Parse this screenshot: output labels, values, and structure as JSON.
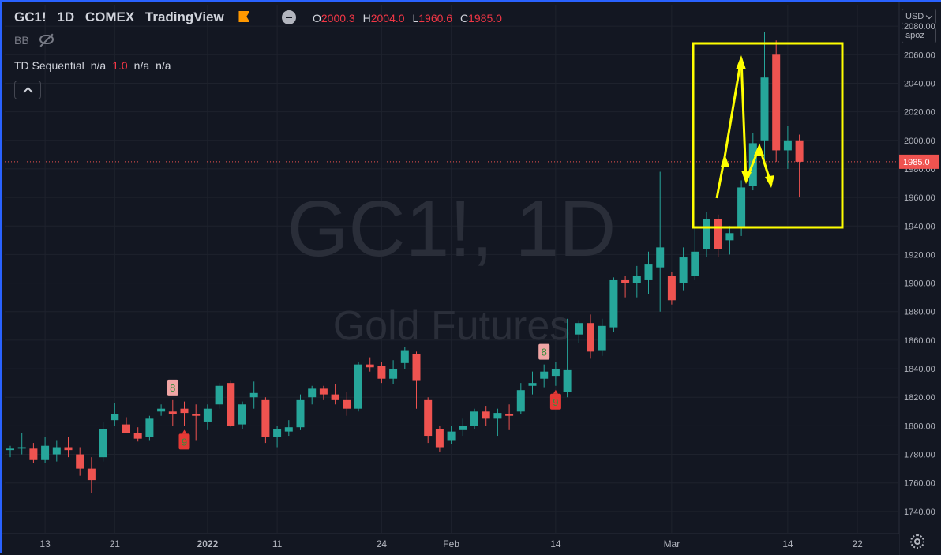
{
  "header": {
    "symbol": "GC1!",
    "interval": "1D",
    "exchange": "COMEX",
    "source": "TradingView",
    "ohlc": {
      "o_label": "O",
      "o": "2000.3",
      "h_label": "H",
      "h": "2004.0",
      "l_label": "L",
      "l": "1960.6",
      "c_label": "C",
      "c": "1985.0"
    }
  },
  "indicators": {
    "bb_label": "BB",
    "td_label": "TD Sequential",
    "td_values": [
      "n/a",
      "1.0",
      "n/a",
      "n/a"
    ]
  },
  "controls": {
    "currency": "USD",
    "scale_mode": "apoz"
  },
  "watermark": {
    "title": "GC1!, 1D",
    "subtitle": "Gold Futures"
  },
  "colors": {
    "up": "#26a69a",
    "down": "#ef5350",
    "annotation": "#ffff00",
    "background": "#131722"
  },
  "chart_data": {
    "type": "candlestick",
    "y_range": [
      1725,
      2095
    ],
    "y_ticks": [
      1740,
      1760,
      1780,
      1800,
      1820,
      1840,
      1860,
      1880,
      1900,
      1920,
      1940,
      1960,
      1980,
      2000,
      2020,
      2040,
      2060,
      2080
    ],
    "x_ticks": [
      {
        "index": 3,
        "label": "13"
      },
      {
        "index": 9,
        "label": "21"
      },
      {
        "index": 17,
        "label": "2022"
      },
      {
        "index": 23,
        "label": "11"
      },
      {
        "index": 32,
        "label": "24"
      },
      {
        "index": 38,
        "label": "Feb"
      },
      {
        "index": 47,
        "label": "14"
      },
      {
        "index": 57,
        "label": "Mar"
      },
      {
        "index": 67,
        "label": "14"
      },
      {
        "index": 73,
        "label": "22"
      }
    ],
    "last_price": {
      "value": 1985.0,
      "label": "1985.0"
    },
    "td_markers": [
      {
        "index": 14,
        "label": "8",
        "type": "up"
      },
      {
        "index": 15,
        "label": "9",
        "type": "down"
      },
      {
        "index": 46,
        "label": "8",
        "type": "up"
      },
      {
        "index": 47,
        "label": "9",
        "type": "down"
      }
    ],
    "candles": [
      {
        "o": 1783,
        "h": 1786,
        "l": 1778,
        "c": 1784
      },
      {
        "o": 1784,
        "h": 1795,
        "l": 1780,
        "c": 1785
      },
      {
        "o": 1784,
        "h": 1788,
        "l": 1774,
        "c": 1776
      },
      {
        "o": 1776,
        "h": 1792,
        "l": 1774,
        "c": 1786
      },
      {
        "o": 1780,
        "h": 1790,
        "l": 1775,
        "c": 1785
      },
      {
        "o": 1785,
        "h": 1792,
        "l": 1778,
        "c": 1783
      },
      {
        "o": 1780,
        "h": 1785,
        "l": 1765,
        "c": 1770
      },
      {
        "o": 1770,
        "h": 1778,
        "l": 1753,
        "c": 1762
      },
      {
        "o": 1778,
        "h": 1803,
        "l": 1775,
        "c": 1798
      },
      {
        "o": 1804,
        "h": 1816,
        "l": 1800,
        "c": 1808
      },
      {
        "o": 1801,
        "h": 1806,
        "l": 1795,
        "c": 1795
      },
      {
        "o": 1795,
        "h": 1799,
        "l": 1789,
        "c": 1791
      },
      {
        "o": 1792,
        "h": 1807,
        "l": 1790,
        "c": 1805
      },
      {
        "o": 1810,
        "h": 1815,
        "l": 1807,
        "c": 1812
      },
      {
        "o": 1810,
        "h": 1818,
        "l": 1800,
        "c": 1808
      },
      {
        "o": 1812,
        "h": 1817,
        "l": 1800,
        "c": 1809
      },
      {
        "o": 1808,
        "h": 1815,
        "l": 1790,
        "c": 1807
      },
      {
        "o": 1803,
        "h": 1815,
        "l": 1797,
        "c": 1812
      },
      {
        "o": 1815,
        "h": 1830,
        "l": 1812,
        "c": 1828
      },
      {
        "o": 1830,
        "h": 1832,
        "l": 1799,
        "c": 1800
      },
      {
        "o": 1801,
        "h": 1817,
        "l": 1798,
        "c": 1815
      },
      {
        "o": 1820,
        "h": 1831,
        "l": 1812,
        "c": 1823
      },
      {
        "o": 1818,
        "h": 1820,
        "l": 1788,
        "c": 1792
      },
      {
        "o": 1792,
        "h": 1800,
        "l": 1785,
        "c": 1798
      },
      {
        "o": 1796,
        "h": 1804,
        "l": 1793,
        "c": 1799
      },
      {
        "o": 1799,
        "h": 1822,
        "l": 1797,
        "c": 1818
      },
      {
        "o": 1820,
        "h": 1828,
        "l": 1815,
        "c": 1826
      },
      {
        "o": 1826,
        "h": 1828,
        "l": 1818,
        "c": 1822
      },
      {
        "o": 1822,
        "h": 1829,
        "l": 1815,
        "c": 1818
      },
      {
        "o": 1818,
        "h": 1824,
        "l": 1807,
        "c": 1812
      },
      {
        "o": 1812,
        "h": 1845,
        "l": 1810,
        "c": 1843
      },
      {
        "o": 1843,
        "h": 1848,
        "l": 1838,
        "c": 1841
      },
      {
        "o": 1842,
        "h": 1845,
        "l": 1830,
        "c": 1833
      },
      {
        "o": 1833,
        "h": 1846,
        "l": 1829,
        "c": 1840
      },
      {
        "o": 1844,
        "h": 1855,
        "l": 1840,
        "c": 1853
      },
      {
        "o": 1850,
        "h": 1852,
        "l": 1812,
        "c": 1832
      },
      {
        "o": 1818,
        "h": 1820,
        "l": 1788,
        "c": 1793
      },
      {
        "o": 1798,
        "h": 1800,
        "l": 1782,
        "c": 1785
      },
      {
        "o": 1790,
        "h": 1800,
        "l": 1787,
        "c": 1796
      },
      {
        "o": 1797,
        "h": 1805,
        "l": 1793,
        "c": 1800
      },
      {
        "o": 1800,
        "h": 1812,
        "l": 1798,
        "c": 1810
      },
      {
        "o": 1810,
        "h": 1814,
        "l": 1800,
        "c": 1805
      },
      {
        "o": 1805,
        "h": 1812,
        "l": 1793,
        "c": 1809
      },
      {
        "o": 1808,
        "h": 1815,
        "l": 1797,
        "c": 1807
      },
      {
        "o": 1810,
        "h": 1830,
        "l": 1808,
        "c": 1825
      },
      {
        "o": 1828,
        "h": 1838,
        "l": 1822,
        "c": 1830
      },
      {
        "o": 1833,
        "h": 1843,
        "l": 1827,
        "c": 1838
      },
      {
        "o": 1835,
        "h": 1845,
        "l": 1828,
        "c": 1840
      },
      {
        "o": 1824,
        "h": 1875,
        "l": 1820,
        "c": 1839
      },
      {
        "o": 1864,
        "h": 1874,
        "l": 1858,
        "c": 1872
      },
      {
        "o": 1872,
        "h": 1878,
        "l": 1847,
        "c": 1852
      },
      {
        "o": 1853,
        "h": 1875,
        "l": 1849,
        "c": 1870
      },
      {
        "o": 1869,
        "h": 1904,
        "l": 1866,
        "c": 1902
      },
      {
        "o": 1902,
        "h": 1905,
        "l": 1890,
        "c": 1900
      },
      {
        "o": 1900,
        "h": 1912,
        "l": 1890,
        "c": 1905
      },
      {
        "o": 1902,
        "h": 1922,
        "l": 1892,
        "c": 1913
      },
      {
        "o": 1911,
        "h": 1978,
        "l": 1880,
        "c": 1925
      },
      {
        "o": 1905,
        "h": 1908,
        "l": 1885,
        "c": 1888
      },
      {
        "o": 1900,
        "h": 1925,
        "l": 1895,
        "c": 1918
      },
      {
        "o": 1905,
        "h": 1940,
        "l": 1902,
        "c": 1922
      },
      {
        "o": 1924,
        "h": 1950,
        "l": 1918,
        "c": 1945
      },
      {
        "o": 1945,
        "h": 1948,
        "l": 1918,
        "c": 1924
      },
      {
        "o": 1930,
        "h": 1940,
        "l": 1920,
        "c": 1935
      },
      {
        "o": 1939,
        "h": 1972,
        "l": 1933,
        "c": 1967
      },
      {
        "o": 1968,
        "h": 2005,
        "l": 1965,
        "c": 1998
      },
      {
        "o": 2000,
        "h": 2076,
        "l": 1985,
        "c": 2044
      },
      {
        "o": 2060,
        "h": 2070,
        "l": 1985,
        "c": 1993
      },
      {
        "o": 1993,
        "h": 2010,
        "l": 1980,
        "c": 2000
      },
      {
        "o": 2000,
        "h": 2004,
        "l": 1960,
        "c": 1985
      }
    ]
  }
}
